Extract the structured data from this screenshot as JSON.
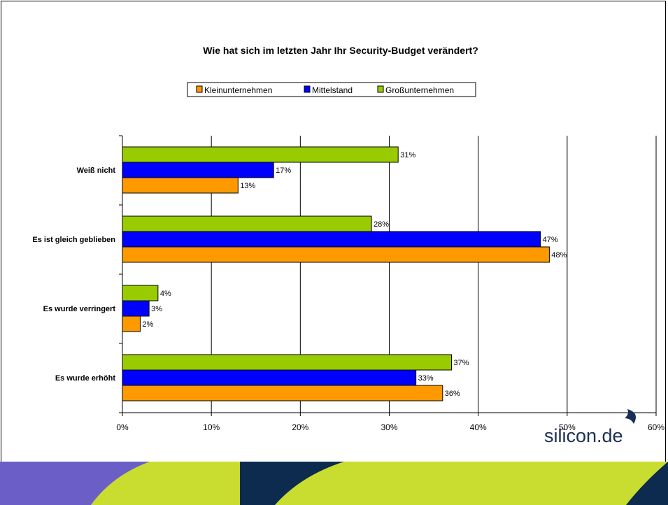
{
  "chart_data": {
    "type": "bar",
    "orientation": "horizontal",
    "title": "Wie hat sich im letzten Jahr Ihr Security-Budget verändert?",
    "categories": [
      "Weiß nicht",
      "Es ist gleich geblieben",
      "Es wurde verringert",
      "Es wurde erhöht"
    ],
    "series": [
      {
        "name": "Großunternehmen",
        "color": "#99cc00",
        "values": [
          31,
          28,
          4,
          37
        ],
        "labels": [
          "31%",
          "28%",
          "4%",
          "37%"
        ]
      },
      {
        "name": "Mittelstand",
        "color": "#0000ff",
        "values": [
          17,
          47,
          3,
          33
        ],
        "labels": [
          "17%",
          "47%",
          "3%",
          "33%"
        ]
      },
      {
        "name": "Kleinunternehmen",
        "color": "#ff9900",
        "values": [
          13,
          48,
          2,
          36
        ],
        "labels": [
          "13%",
          "48%",
          "2%",
          "36%"
        ]
      }
    ],
    "legend_order": [
      "Kleinunternehmen",
      "Mittelstand",
      "Großunternehmen"
    ],
    "xlim": [
      0,
      60
    ],
    "xticks": [
      0,
      10,
      20,
      30,
      40,
      50,
      60
    ],
    "xtick_labels": [
      "0%",
      "10%",
      "20%",
      "30%",
      "40%",
      "50%",
      "60%"
    ],
    "grid": "vertical",
    "legend_position": "top-center"
  },
  "logo": {
    "text": "silicon.de",
    "accent_color": "#1b2f55"
  },
  "footer_band": {
    "colors": [
      "#6b5fc7",
      "#c8dd30",
      "#0d2b4f"
    ]
  }
}
